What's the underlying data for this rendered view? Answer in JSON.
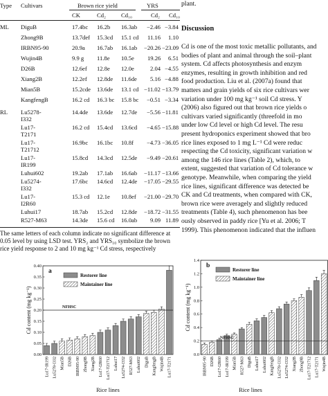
{
  "table": {
    "header": {
      "type": "Type",
      "cultivars": "Cultivars",
      "group1": "Brown rice yield",
      "group2": "YRS",
      "sub": [
        "CK",
        "Cd₂",
        "Cd₁₀",
        "Cd₂",
        "Cd₁₀"
      ]
    },
    "groups": [
      {
        "type": "ML",
        "rows": [
          [
            "DiguB",
            "17.4bc",
            "16.2b",
            "16.3ab",
            "−2.46",
            "−3.84"
          ],
          [
            "Zhong9B",
            "13.7def",
            "15.3cd",
            "15.1 cd",
            "11.16",
            "1.10"
          ],
          [
            "IRBN95-90",
            "20.9a",
            "16.7ab",
            "16.1ab",
            "−20.26",
            "−23.09"
          ],
          [
            "Wujin4B",
            "9.9 g",
            "11.8e",
            "10.5e",
            "19.26",
            "6.51"
          ],
          [
            "D26B",
            "12.6ef",
            "12.8e",
            "12.0e",
            "2.04",
            "−4.55"
          ],
          [
            "Xiang2B",
            "12.2ef",
            "12.8de",
            "11.6de",
            "5.16",
            "−4.88"
          ],
          [
            "Mian5B",
            "15.2cde",
            "13.6de",
            "13.1 cd",
            "−11.02",
            "−13.79"
          ],
          [
            "KangfengB",
            "16.2 cd",
            "16.3 bc",
            "15.8 bc",
            "−0.51",
            "−3.34"
          ]
        ]
      },
      {
        "type": "RL",
        "rows": [
          [
            "Lu5278-I332",
            "14.4de",
            "13.6de",
            "12.7de",
            "−5.56",
            "−11.81"
          ],
          [
            "Lu17-T2171",
            "16.2 cd",
            "15.4cd",
            "13.6cd",
            "−4.65",
            "−15.88"
          ],
          [
            "Lu17-T21712",
            "16.9bc",
            "16.1bc",
            "10.8f",
            "−4.73",
            "−36.05"
          ],
          [
            "Lu17-IR199",
            "15.8cd",
            "14.3cd",
            "12.5de",
            "−9.49",
            "−20.61"
          ],
          [
            "Luhui602",
            "19.2ab",
            "17.1ab",
            "16.6ab",
            "−11.17",
            "−13.66"
          ],
          [
            "Lu5274-I332",
            "17.6bc",
            "14.6cd",
            "12.4de",
            "−17.05",
            "−29.55"
          ],
          [
            "Lu17-I2R60",
            "15.3 cd",
            "12.1e",
            "10.8ef",
            "−21.00",
            "−29.70"
          ],
          [
            "Luhui17",
            "18.7ab",
            "15.2cd",
            "12.8de",
            "−18.72",
            "−31.55"
          ],
          [
            "R527-M63",
            "14.3de",
            "15.6 cd",
            "16.0ab",
            "9.09",
            "11.89"
          ]
        ]
      }
    ],
    "footnote": "The same letters of each column indicate no significant difference at 0.05 level by using LSD test. YRS₂ and YRS₁₀ symbolize the brown rice yield response to 2 and 10 mg kg⁻¹ Cd stress, respectively"
  },
  "text": {
    "top": "plant.",
    "heading": "Discussion",
    "lines": [
      "Cd is one of the most toxic metallic pollutants, and",
      "bodies of plant and animal through the soil–plant",
      "system. Cd affects photosynthesis and enzym",
      "enzymes, resulting in growth inhibition and red",
      "food production. Liu et al. (2007a) found that",
      "matters and grain yields of six rice cultivars wer",
      "variation under 100 mg kg⁻¹ soil Cd stress. Y",
      "(2006) also figured out that brown rice yields o",
      "cultivars varied significantly (threefold in mo",
      "under low Cd level or high Cd level. The resu",
      "present hydroponics experiment showed that bro",
      "rice lines exposed to 1 mg L⁻¹ Cd were reduc",
      "respecting the Cd toxicity, significant variation w",
      "among the 146 rice lines (Table 2), which, to",
      "extent, suggested that variation of Cd tolerance w",
      "genotype. Meanwhile, when comparing the yield",
      "rice lines, significant difference was detected be",
      "CK and Cd treatments, when compared with CK,",
      "brown rice were averagely and slightly reduced",
      "treatments (Table 4), such phenomenon has bee",
      "ously observed in paddy rice [Yu et al. 2006; T",
      "1999). This phenomenon indicated that the influen",
      "on rice lines was existed but differing in cultivar"
    ]
  },
  "chart_data": [
    {
      "type": "bar",
      "title": "a",
      "xlabel": "Rice lines",
      "ylabel": "Cd content (mg kg⁻¹)",
      "categories": [
        "Lu17-IR199",
        "Lu5278-I332",
        "Mian5B",
        "D26B",
        "IRBN95-90",
        "Zhong9B",
        "Xiang2B",
        "Lu17-I2R60",
        "Lu17-T21712",
        "Luhui17",
        "Lu5274-I332",
        "R527-M63",
        "Luhui602",
        "DiguB",
        "KangfengB",
        "Wujin4B",
        "Lu17-T2171"
      ],
      "series": [
        {
          "name": "Restorer line",
          "color": "#8c8c8c",
          "hatch": false,
          "values": [
            0.04,
            0.05,
            null,
            null,
            null,
            null,
            null,
            0.1,
            0.11,
            0.13,
            0.15,
            0.16,
            0.17,
            null,
            null,
            null,
            0.38
          ],
          "errors": [
            0.01,
            0.01,
            null,
            null,
            null,
            null,
            null,
            0.01,
            0.01,
            0.01,
            0.01,
            0.01,
            0.01,
            null,
            null,
            null,
            0.02
          ]
        },
        {
          "name": "Maintainer line",
          "color": "#555555",
          "hatch": true,
          "values": [
            null,
            null,
            0.06,
            0.065,
            0.07,
            0.08,
            0.085,
            null,
            null,
            null,
            null,
            null,
            null,
            0.185,
            0.19,
            0.205,
            null
          ],
          "errors": [
            null,
            null,
            0.01,
            0.01,
            0.01,
            0.01,
            0.01,
            null,
            null,
            null,
            null,
            null,
            null,
            0.01,
            0.01,
            0.01,
            null
          ]
        }
      ],
      "ylim": [
        0,
        0.4
      ],
      "yticks": [
        {
          "value": 0,
          "label": "0.00"
        },
        0.05,
        {
          "value": 0.1,
          "label": "0.10"
        },
        0.15,
        {
          "value": 0.2,
          "label": "0.20"
        },
        0.25,
        {
          "value": 0.3,
          "label": "0.30"
        },
        0.35,
        {
          "value": 0.4,
          "label": "0.40"
        }
      ],
      "threshold": {
        "value": 0.2,
        "label": "NFHSC"
      }
    },
    {
      "type": "bar",
      "title": "b",
      "xlabel": "Rice lines",
      "ylabel": "Cd content (mg kg⁻¹)",
      "categories": [
        "IRBN95-90",
        "D26B",
        "Lu17-I2R60",
        "Lu17-IR199",
        "Mian5B",
        "R527-M63",
        "DiguB",
        "Luhui17",
        "Luhui602",
        "KangfengB",
        "Lu5278-I332",
        "Lu5274-I332",
        "Xiang2B",
        "Zhong9B",
        "Lu17-T21712",
        "Lu17-T2171",
        "Wujin4B"
      ],
      "series": [
        {
          "name": "Restorer line",
          "color": "#8c8c8c",
          "hatch": false,
          "values": [
            null,
            null,
            0.22,
            0.28,
            null,
            0.38,
            null,
            0.5,
            0.55,
            null,
            0.68,
            0.75,
            null,
            null,
            0.95,
            1.1,
            null
          ],
          "errors": [
            null,
            null,
            0.02,
            0.02,
            null,
            0.02,
            null,
            0.03,
            0.03,
            null,
            0.03,
            0.03,
            null,
            null,
            0.04,
            0.05,
            null
          ]
        },
        {
          "name": "Maintainer line",
          "color": "#555555",
          "hatch": true,
          "values": [
            0.15,
            0.18,
            null,
            null,
            0.3,
            null,
            0.45,
            null,
            null,
            0.62,
            null,
            null,
            0.8,
            0.85,
            null,
            null,
            1.2
          ],
          "errors": [
            0.02,
            0.02,
            null,
            null,
            0.02,
            null,
            0.03,
            null,
            null,
            0.03,
            null,
            null,
            0.03,
            0.04,
            null,
            null,
            0.05
          ]
        }
      ],
      "ylim": [
        0,
        1.4
      ],
      "yticks": [
        {
          "value": 0,
          "label": "0.0"
        },
        0.2,
        0.4,
        0.6,
        0.8,
        {
          "value": 1,
          "label": "1.0"
        },
        1.2,
        1.4
      ],
      "threshold": {
        "value": 0.2,
        "label": "NFHSC"
      }
    }
  ]
}
